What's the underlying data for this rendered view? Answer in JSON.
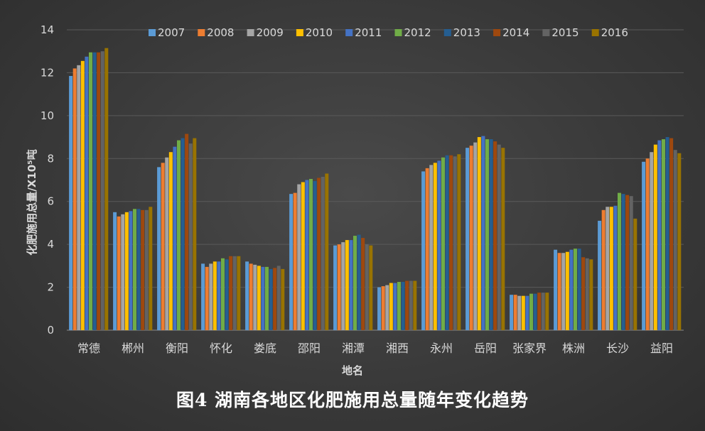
{
  "caption": "图4 湖南各地区化肥施用总量随年变化趋势",
  "chart_data": {
    "type": "bar",
    "xlabel": "地名",
    "ylabel": "化肥施用总量/X10⁵吨",
    "ylim": [
      0,
      14
    ],
    "yticks": [
      "0",
      "2",
      "4",
      "6",
      "8",
      "10",
      "12",
      "14"
    ],
    "grid": true,
    "legend_position": "top",
    "categories": [
      "常德",
      "郴州",
      "衡阳",
      "怀化",
      "娄底",
      "邵阳",
      "湘潭",
      "湘西",
      "永州",
      "岳阳",
      "张家界",
      "株洲",
      "长沙",
      "益阳"
    ],
    "series": [
      {
        "name": "2007",
        "color": "#5b9bd5",
        "values": [
          11.85,
          5.5,
          7.6,
          3.1,
          3.2,
          6.35,
          3.95,
          2.0,
          7.4,
          8.5,
          1.65,
          3.75,
          5.1,
          7.85
        ]
      },
      {
        "name": "2008",
        "color": "#ed7d31",
        "values": [
          12.2,
          5.3,
          7.8,
          2.95,
          3.1,
          6.4,
          4.0,
          2.05,
          7.55,
          8.6,
          1.65,
          3.6,
          5.6,
          8.0
        ]
      },
      {
        "name": "2009",
        "color": "#a5a5a5",
        "values": [
          12.35,
          5.4,
          8.05,
          3.1,
          3.05,
          6.8,
          4.1,
          2.1,
          7.7,
          8.75,
          1.6,
          3.6,
          5.75,
          8.3
        ]
      },
      {
        "name": "2010",
        "color": "#ffc000",
        "values": [
          12.55,
          5.5,
          8.3,
          3.2,
          3.0,
          6.9,
          4.2,
          2.2,
          7.8,
          9.0,
          1.6,
          3.65,
          5.75,
          8.65
        ]
      },
      {
        "name": "2011",
        "color": "#4472c4",
        "values": [
          12.75,
          5.55,
          8.55,
          3.2,
          2.95,
          7.0,
          4.2,
          2.2,
          7.9,
          9.05,
          1.6,
          3.75,
          5.8,
          8.85
        ]
      },
      {
        "name": "2012",
        "color": "#70ad47",
        "values": [
          12.95,
          5.65,
          8.85,
          3.35,
          2.95,
          7.05,
          4.4,
          2.25,
          8.05,
          8.9,
          1.7,
          3.8,
          6.4,
          8.9
        ]
      },
      {
        "name": "2013",
        "color": "#255e91",
        "values": [
          12.95,
          5.65,
          8.95,
          3.3,
          2.85,
          6.95,
          4.45,
          2.25,
          8.15,
          8.9,
          1.7,
          3.8,
          6.35,
          9.0
        ]
      },
      {
        "name": "2014",
        "color": "#9e480e",
        "values": [
          12.95,
          5.6,
          9.15,
          3.45,
          2.9,
          7.1,
          4.3,
          2.3,
          8.15,
          8.8,
          1.75,
          3.4,
          6.3,
          8.95
        ]
      },
      {
        "name": "2015",
        "color": "#636363",
        "values": [
          13.0,
          5.6,
          8.7,
          3.45,
          3.0,
          7.15,
          4.0,
          2.3,
          8.1,
          8.65,
          1.75,
          3.35,
          6.25,
          8.4
        ]
      },
      {
        "name": "2016",
        "color": "#997300",
        "values": [
          13.15,
          5.75,
          8.95,
          3.45,
          2.85,
          7.3,
          3.95,
          2.3,
          8.2,
          8.5,
          1.75,
          3.3,
          5.2,
          8.25
        ]
      }
    ]
  }
}
